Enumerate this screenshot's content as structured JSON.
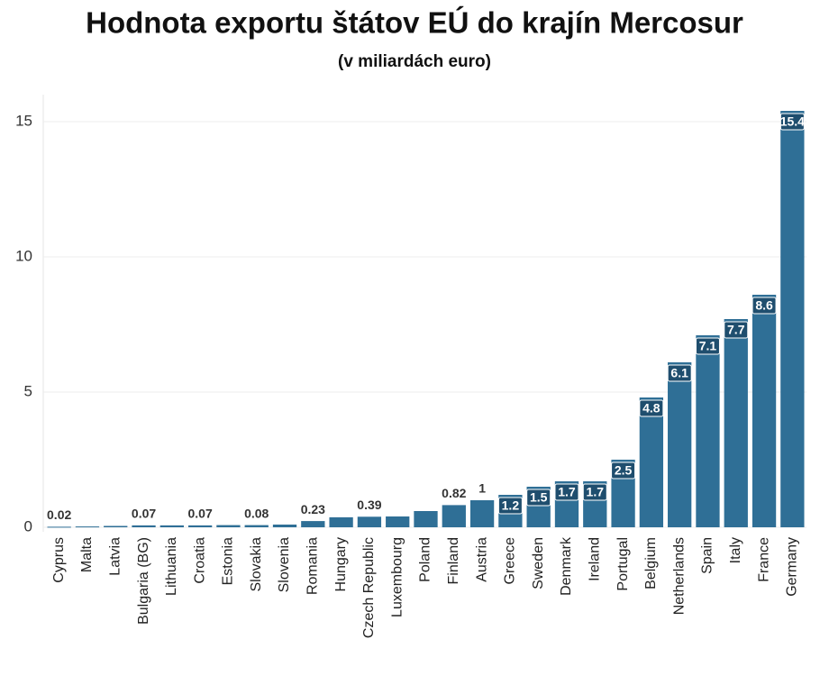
{
  "chart_data": {
    "type": "bar",
    "title": "Hodnota exportu štátov EÚ do krajín Mercosur",
    "subtitle": "(v miliardách euro)",
    "categories": [
      "Cyprus",
      "Malta",
      "Latvia",
      "Bulgaria (BG)",
      "Lithuania",
      "Croatia",
      "Estonia",
      "Slovakia",
      "Slovenia",
      "Romania",
      "Hungary",
      "Czech Republic",
      "Luxembourg",
      "Poland",
      "Finland",
      "Austria",
      "Greece",
      "Sweden",
      "Denmark",
      "Ireland",
      "Portugal",
      "Belgium",
      "Netherlands",
      "Spain",
      "Italy",
      "France",
      "Germany"
    ],
    "values": [
      0.02,
      0.03,
      0.05,
      0.07,
      0.07,
      0.07,
      0.08,
      0.08,
      0.1,
      0.23,
      0.37,
      0.39,
      0.4,
      0.6,
      0.82,
      1,
      1.2,
      1.5,
      1.7,
      1.7,
      2.5,
      4.8,
      6.1,
      7.1,
      7.7,
      8.6,
      15.4
    ],
    "value_labels": [
      "0.02",
      null,
      null,
      "0.07",
      null,
      "0.07",
      null,
      "0.08",
      null,
      "0.23",
      null,
      "0.39",
      null,
      null,
      "0.82",
      "1",
      "1.2",
      "1.5",
      "1.7",
      "1.7",
      "2.5",
      "4.8",
      "6.1",
      "7.1",
      "7.7",
      "8.6",
      "15.4"
    ],
    "color": "#2f6f96",
    "ylim": [
      0,
      16
    ],
    "yticks": [
      0,
      5,
      10,
      15
    ],
    "grid": true
  }
}
